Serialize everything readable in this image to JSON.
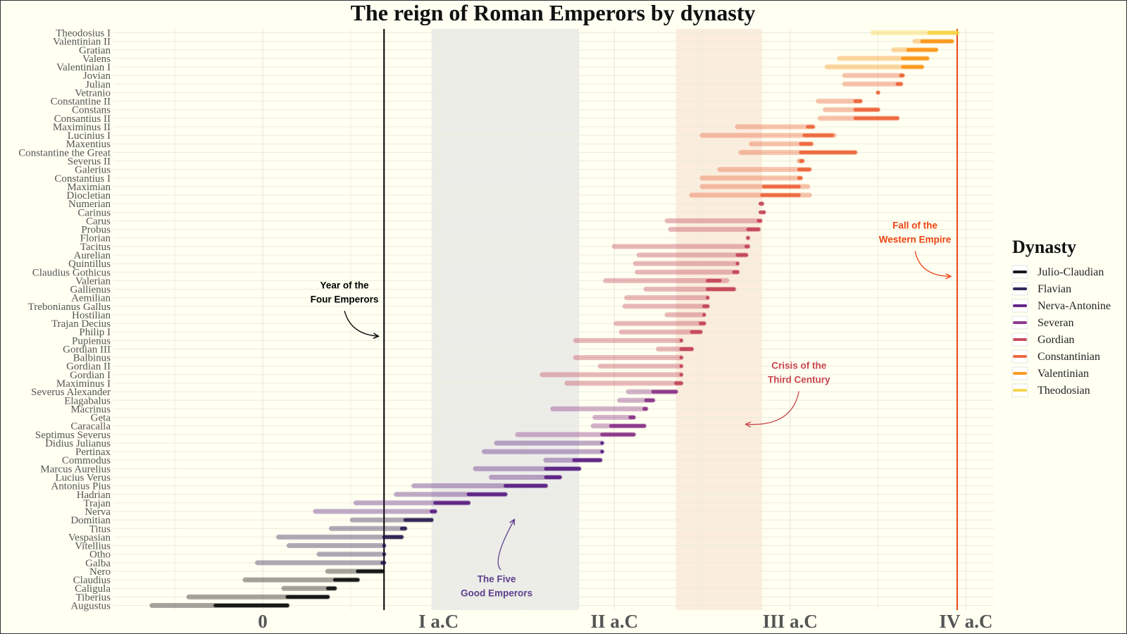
{
  "chart_data": {
    "type": "range-bar",
    "title": "The reign of Roman Emperors by dynasty",
    "x_ticks": [
      {
        "value": 0,
        "label": "0"
      },
      {
        "value": 100,
        "label": "I a.C"
      },
      {
        "value": 200,
        "label": "II a.C"
      },
      {
        "value": 300,
        "label": "III a.C"
      },
      {
        "value": 400,
        "label": "IV a.C"
      }
    ],
    "xlim": [
      -85,
      420
    ],
    "legend_title": "Dynasty",
    "legend_position": "right",
    "dynasties": [
      {
        "name": "Julio-Claudian",
        "color": "#000004"
      },
      {
        "name": "Flavian",
        "color": "#1d1147"
      },
      {
        "name": "Nerva-Antonine",
        "color": "#51127c"
      },
      {
        "name": "Severan",
        "color": "#832681"
      },
      {
        "name": "Gordian",
        "color": "#c03a4f"
      },
      {
        "name": "Constantinian",
        "color": "#ec5a2e"
      },
      {
        "name": "Valentinian",
        "color": "#fa8f0a"
      },
      {
        "name": "Theodosian",
        "color": "#f7d03c"
      }
    ],
    "emperors": [
      {
        "name": "Augustus",
        "dynasty": "Julio-Claudian",
        "life": [
          -63,
          14
        ],
        "reign": [
          -27,
          14
        ]
      },
      {
        "name": "Tiberius",
        "dynasty": "Julio-Claudian",
        "life": [
          -42,
          37
        ],
        "reign": [
          14,
          37
        ]
      },
      {
        "name": "Caligula",
        "dynasty": "Julio-Claudian",
        "life": [
          12,
          41
        ],
        "reign": [
          37,
          41
        ]
      },
      {
        "name": "Claudius",
        "dynasty": "Julio-Claudian",
        "life": [
          -10,
          54
        ],
        "reign": [
          41,
          54
        ]
      },
      {
        "name": "Nero",
        "dynasty": "Julio-Claudian",
        "life": [
          37,
          68
        ],
        "reign": [
          54,
          68
        ]
      },
      {
        "name": "Galba",
        "dynasty": "Flavian",
        "life": [
          -3,
          69
        ],
        "reign": [
          68,
          69
        ]
      },
      {
        "name": "Otho",
        "dynasty": "Flavian",
        "life": [
          32,
          69
        ],
        "reign": [
          69,
          69
        ]
      },
      {
        "name": "Vitellius",
        "dynasty": "Flavian",
        "life": [
          15,
          69
        ],
        "reign": [
          69,
          69
        ]
      },
      {
        "name": "Vespasian",
        "dynasty": "Flavian",
        "life": [
          9,
          79
        ],
        "reign": [
          69,
          79
        ]
      },
      {
        "name": "Titus",
        "dynasty": "Flavian",
        "life": [
          39,
          81
        ],
        "reign": [
          79,
          81
        ]
      },
      {
        "name": "Domitian",
        "dynasty": "Flavian",
        "life": [
          51,
          96
        ],
        "reign": [
          81,
          96
        ]
      },
      {
        "name": "Nerva",
        "dynasty": "Nerva-Antonine",
        "life": [
          30,
          98
        ],
        "reign": [
          96,
          98
        ]
      },
      {
        "name": "Trajan",
        "dynasty": "Nerva-Antonine",
        "life": [
          53,
          117
        ],
        "reign": [
          98,
          117
        ]
      },
      {
        "name": "Hadrian",
        "dynasty": "Nerva-Antonine",
        "life": [
          76,
          138
        ],
        "reign": [
          117,
          138
        ]
      },
      {
        "name": "Antonius Pius",
        "dynasty": "Nerva-Antonine",
        "life": [
          86,
          161
        ],
        "reign": [
          138,
          161
        ]
      },
      {
        "name": "Lucius Verus",
        "dynasty": "Nerva-Antonine",
        "life": [
          130,
          169
        ],
        "reign": [
          161,
          169
        ]
      },
      {
        "name": "Marcus Aurelius",
        "dynasty": "Nerva-Antonine",
        "life": [
          121,
          180
        ],
        "reign": [
          161,
          180
        ]
      },
      {
        "name": "Commodus",
        "dynasty": "Nerva-Antonine",
        "life": [
          161,
          192
        ],
        "reign": [
          177,
          192
        ]
      },
      {
        "name": "Pertinax",
        "dynasty": "Nerva-Antonine",
        "life": [
          126,
          193
        ],
        "reign": [
          193,
          193
        ]
      },
      {
        "name": "Didius Julianus",
        "dynasty": "Nerva-Antonine",
        "life": [
          133,
          193
        ],
        "reign": [
          193,
          193
        ]
      },
      {
        "name": "Septimus Severus",
        "dynasty": "Severan",
        "life": [
          145,
          211
        ],
        "reign": [
          193,
          211
        ]
      },
      {
        "name": "Caracalla",
        "dynasty": "Severan",
        "life": [
          188,
          217
        ],
        "reign": [
          198,
          217
        ]
      },
      {
        "name": "Geta",
        "dynasty": "Severan",
        "life": [
          189,
          211
        ],
        "reign": [
          209,
          211
        ]
      },
      {
        "name": "Macrinus",
        "dynasty": "Severan",
        "life": [
          165,
          218
        ],
        "reign": [
          217,
          218
        ]
      },
      {
        "name": "Elagabalus",
        "dynasty": "Severan",
        "life": [
          203,
          222
        ],
        "reign": [
          218,
          222
        ]
      },
      {
        "name": "Severus Alexander",
        "dynasty": "Severan",
        "life": [
          208,
          235
        ],
        "reign": [
          222,
          235
        ]
      },
      {
        "name": "Maximinus I",
        "dynasty": "Gordian",
        "life": [
          173,
          238
        ],
        "reign": [
          235,
          238
        ]
      },
      {
        "name": "Gordian I",
        "dynasty": "Gordian",
        "life": [
          159,
          238
        ],
        "reign": [
          238,
          238
        ]
      },
      {
        "name": "Gordian II",
        "dynasty": "Gordian",
        "life": [
          192,
          238
        ],
        "reign": [
          238,
          238
        ]
      },
      {
        "name": "Balbinus",
        "dynasty": "Gordian",
        "life": [
          178,
          238
        ],
        "reign": [
          238,
          238
        ]
      },
      {
        "name": "Gordian III",
        "dynasty": "Gordian",
        "life": [
          225,
          244
        ],
        "reign": [
          238,
          244
        ]
      },
      {
        "name": "Pupienus",
        "dynasty": "Gordian",
        "life": [
          178,
          238
        ],
        "reign": [
          238,
          238
        ]
      },
      {
        "name": "Philip I",
        "dynasty": "Gordian",
        "life": [
          204,
          249
        ],
        "reign": [
          244,
          249
        ]
      },
      {
        "name": "Trajan Decius",
        "dynasty": "Gordian",
        "life": [
          201,
          251
        ],
        "reign": [
          249,
          251
        ]
      },
      {
        "name": "Hostilian",
        "dynasty": "Gordian",
        "life": [
          230,
          251
        ],
        "reign": [
          251,
          251
        ]
      },
      {
        "name": "Trebonianus Gallus",
        "dynasty": "Gordian",
        "life": [
          206,
          253
        ],
        "reign": [
          251,
          253
        ]
      },
      {
        "name": "Aemilian",
        "dynasty": "Gordian",
        "life": [
          207,
          253
        ],
        "reign": [
          253,
          253
        ]
      },
      {
        "name": "Gallienus",
        "dynasty": "Gordian",
        "life": [
          218,
          268
        ],
        "reign": [
          253,
          268
        ]
      },
      {
        "name": "Valerian",
        "dynasty": "Gordian",
        "life": [
          195,
          264
        ],
        "reign": [
          253,
          260
        ]
      },
      {
        "name": "Claudius Gothicus",
        "dynasty": "Gordian",
        "life": [
          213,
          270
        ],
        "reign": [
          268,
          270
        ]
      },
      {
        "name": "Quintillus",
        "dynasty": "Gordian",
        "life": [
          212,
          270
        ],
        "reign": [
          270,
          270
        ]
      },
      {
        "name": "Aurelian",
        "dynasty": "Gordian",
        "life": [
          214,
          275
        ],
        "reign": [
          270,
          275
        ]
      },
      {
        "name": "Tacitus",
        "dynasty": "Gordian",
        "life": [
          200,
          276
        ],
        "reign": [
          275,
          276
        ]
      },
      {
        "name": "Florian",
        "dynasty": "Gordian",
        "life": [
          276,
          276
        ],
        "reign": [
          276,
          276
        ]
      },
      {
        "name": "Probus",
        "dynasty": "Gordian",
        "life": [
          232,
          282
        ],
        "reign": [
          276,
          282
        ]
      },
      {
        "name": "Carus",
        "dynasty": "Gordian",
        "life": [
          230,
          283
        ],
        "reign": [
          282,
          283
        ]
      },
      {
        "name": "Carinus",
        "dynasty": "Gordian",
        "life": [
          285,
          285
        ],
        "reign": [
          283,
          285
        ]
      },
      {
        "name": "Numerian",
        "dynasty": "Gordian",
        "life": [
          284,
          284
        ],
        "reign": [
          283,
          284
        ]
      },
      {
        "name": "Diocletian",
        "dynasty": "Constantinian",
        "life": [
          244,
          311
        ],
        "reign": [
          284,
          305
        ]
      },
      {
        "name": "Maximian",
        "dynasty": "Constantinian",
        "life": [
          250,
          310
        ],
        "reign": [
          285,
          305
        ]
      },
      {
        "name": "Constantius I",
        "dynasty": "Constantinian",
        "life": [
          250,
          306
        ],
        "reign": [
          305,
          306
        ]
      },
      {
        "name": "Galerius",
        "dynasty": "Constantinian",
        "life": [
          260,
          311
        ],
        "reign": [
          305,
          311
        ]
      },
      {
        "name": "Severus II",
        "dynasty": "Constantinian",
        "life": [
          305,
          307
        ],
        "reign": [
          306,
          307
        ]
      },
      {
        "name": "Constantine the Great",
        "dynasty": "Constantinian",
        "life": [
          272,
          337
        ],
        "reign": [
          306,
          337
        ]
      },
      {
        "name": "Maxentius",
        "dynasty": "Constantinian",
        "life": [
          278,
          312
        ],
        "reign": [
          306,
          312
        ]
      },
      {
        "name": "Lucinius I",
        "dynasty": "Constantinian",
        "life": [
          250,
          325
        ],
        "reign": [
          308,
          324
        ]
      },
      {
        "name": "Maximinus II",
        "dynasty": "Constantinian",
        "life": [
          270,
          313
        ],
        "reign": [
          310,
          313
        ]
      },
      {
        "name": "Consantius II",
        "dynasty": "Constantinian",
        "life": [
          317,
          361
        ],
        "reign": [
          337,
          361
        ]
      },
      {
        "name": "Constans",
        "dynasty": "Constantinian",
        "life": [
          320,
          350
        ],
        "reign": [
          337,
          350
        ]
      },
      {
        "name": "Constantine II",
        "dynasty": "Constantinian",
        "life": [
          316,
          340
        ],
        "reign": [
          337,
          340
        ]
      },
      {
        "name": "Vetranio",
        "dynasty": "Constantinian",
        "life": [
          350,
          350
        ],
        "reign": [
          350,
          350
        ]
      },
      {
        "name": "Julian",
        "dynasty": "Constantinian",
        "life": [
          331,
          363
        ],
        "reign": [
          361,
          363
        ]
      },
      {
        "name": "Jovian",
        "dynasty": "Constantinian",
        "life": [
          331,
          364
        ],
        "reign": [
          363,
          364
        ]
      },
      {
        "name": "Valentinian I",
        "dynasty": "Valentinian",
        "life": [
          321,
          375
        ],
        "reign": [
          364,
          375
        ]
      },
      {
        "name": "Valens",
        "dynasty": "Valentinian",
        "life": [
          328,
          378
        ],
        "reign": [
          364,
          378
        ]
      },
      {
        "name": "Gratian",
        "dynasty": "Valentinian",
        "life": [
          359,
          383
        ],
        "reign": [
          367,
          383
        ]
      },
      {
        "name": "Valentinian II",
        "dynasty": "Valentinian",
        "life": [
          371,
          392
        ],
        "reign": [
          375,
          392
        ]
      },
      {
        "name": "Theodosius I",
        "dynasty": "Theodosian",
        "life": [
          347,
          395
        ],
        "reign": [
          379,
          395
        ]
      }
    ],
    "shaded_periods": [
      {
        "start": 96,
        "end": 180,
        "color": "#e6e6e6",
        "label": "The Five Good Emperors",
        "label_color": "#5b3f8c",
        "label_x": 133,
        "label_row": 2.7,
        "arrow_to_x": 143,
        "arrow_to_row": 10,
        "arrow_curve": 9
      },
      {
        "start": 235,
        "end": 284,
        "color": "#f8e7d6",
        "label": "Crisis of the Third Century",
        "label_color": "#c9464e",
        "label_x": 305,
        "label_row": 27.7,
        "arrow_to_x": 275,
        "arrow_to_row": 21.2,
        "arrow_curve": -11
      }
    ],
    "vertical_lines": [
      {
        "x": 69,
        "color": "#000000",
        "label": "Year of the Four Emperors",
        "label_color": "#000000",
        "label_x": 46.5,
        "label_row": 37.1,
        "arrow_to_x": 65.5,
        "arrow_to_row": 31.5,
        "arrow_curve": 6
      },
      {
        "x": 395,
        "color": "#ee4411",
        "label": "Fall of the Western Empire",
        "label_color": "#ee4411",
        "label_x": 371,
        "label_row": 44.1,
        "arrow_to_x": 391,
        "arrow_to_row": 38.5,
        "arrow_curve": 7
      }
    ]
  }
}
